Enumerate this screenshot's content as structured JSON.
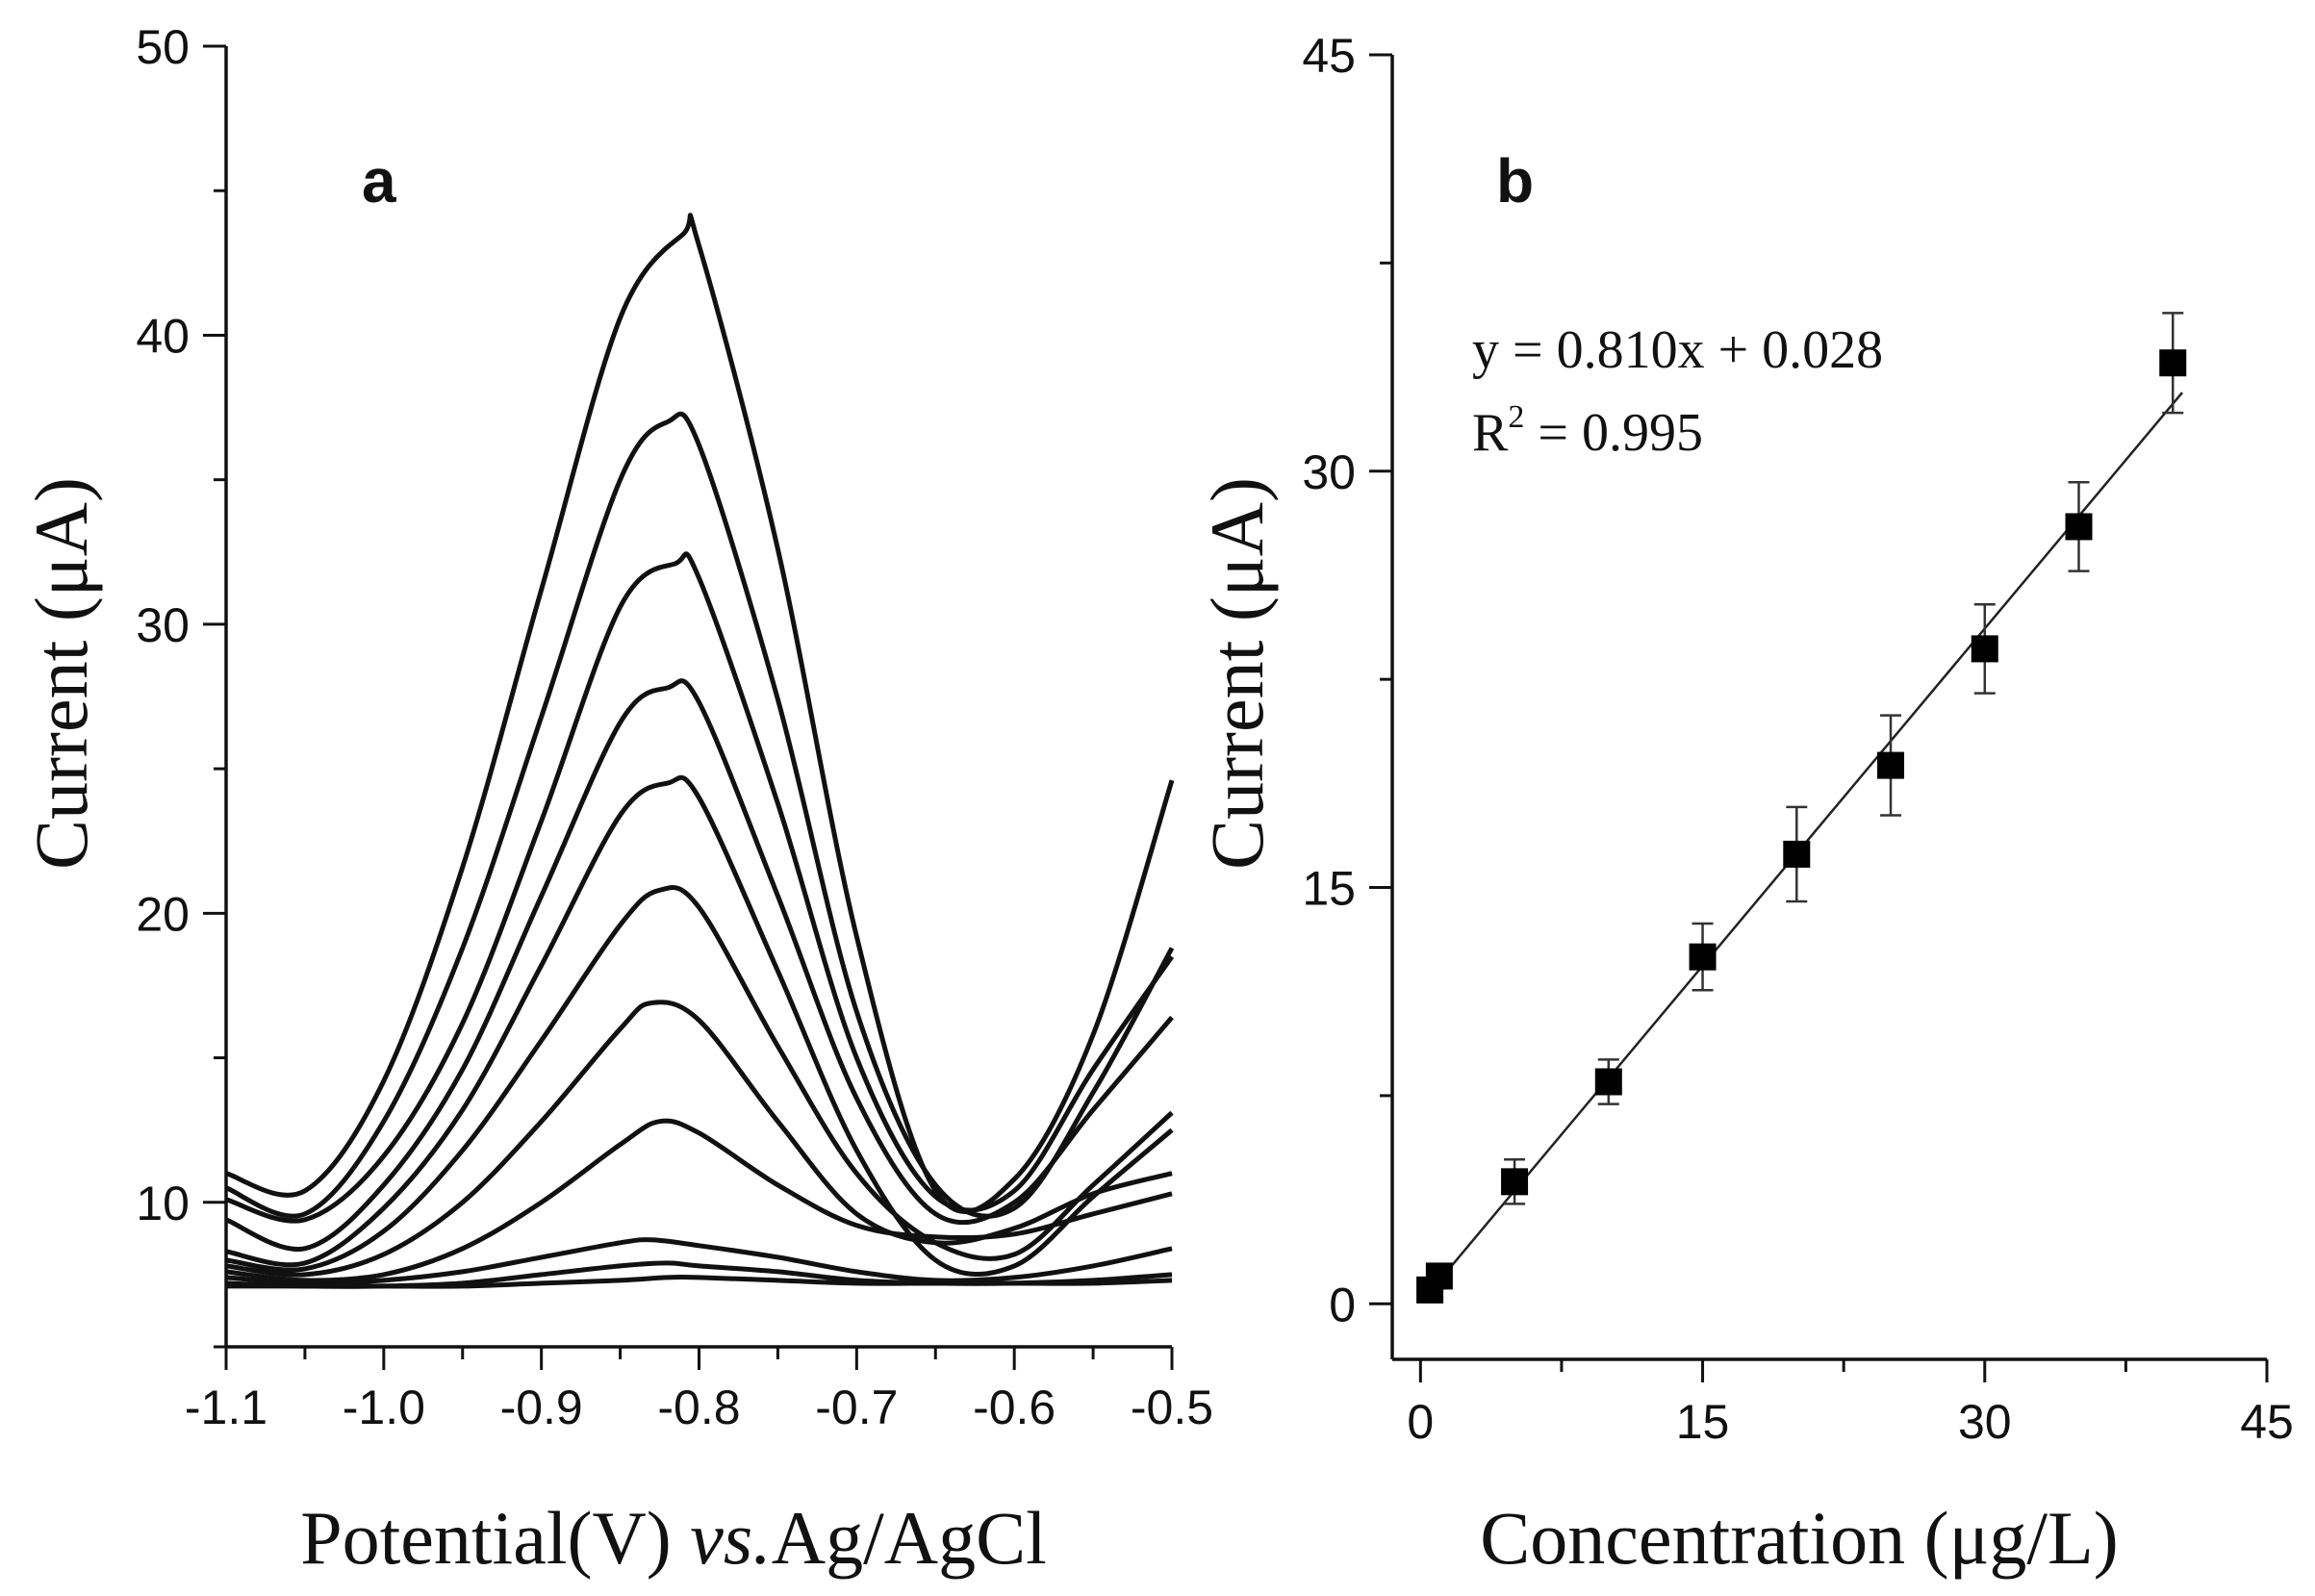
{
  "chart_data": [
    {
      "type": "line",
      "panel_label": "a",
      "xlabel": "Potential(V) vs.Ag/AgCl",
      "xlabel_parts": {
        "pre": "Potential(V) ",
        "italic": "vs.",
        "post": "Ag/AgCl"
      },
      "ylabel": "Current (μA)",
      "xlim": [
        -1.1,
        -0.5
      ],
      "ylim": [
        5,
        50
      ],
      "xticks": [
        -1.1,
        -1.0,
        -0.9,
        -0.8,
        -0.7,
        -0.6,
        -0.5
      ],
      "xtick_labels": [
        "-1.1",
        "-1.0",
        "-0.9",
        "-0.8",
        "-0.7",
        "-0.6",
        "-0.5"
      ],
      "yticks": [
        10,
        20,
        30,
        40,
        50
      ],
      "ytick_labels": [
        "10",
        "20",
        "30",
        "40",
        "50"
      ],
      "series": [
        {
          "x": [
            -1.1,
            -1.05,
            -1.0,
            -0.95,
            -0.9,
            -0.85,
            -0.82,
            -0.8,
            -0.75,
            -0.7,
            -0.65,
            -0.6,
            -0.55,
            -0.5
          ],
          "y": [
            7.1,
            7.1,
            7.1,
            7.1,
            7.2,
            7.3,
            7.4,
            7.4,
            7.3,
            7.2,
            7.2,
            7.2,
            7.2,
            7.3
          ]
        },
        {
          "x": [
            -1.1,
            -1.05,
            -1.0,
            -0.95,
            -0.9,
            -0.85,
            -0.82,
            -0.8,
            -0.75,
            -0.7,
            -0.65,
            -0.6,
            -0.55,
            -0.5
          ],
          "y": [
            7.2,
            7.1,
            7.1,
            7.2,
            7.5,
            7.8,
            7.9,
            7.8,
            7.6,
            7.3,
            7.2,
            7.2,
            7.3,
            7.5
          ]
        },
        {
          "x": [
            -1.1,
            -1.05,
            -1.0,
            -0.95,
            -0.9,
            -0.85,
            -0.83,
            -0.8,
            -0.75,
            -0.7,
            -0.65,
            -0.6,
            -0.55,
            -0.5
          ],
          "y": [
            7.4,
            7.2,
            7.3,
            7.6,
            8.1,
            8.6,
            8.7,
            8.5,
            8.1,
            7.6,
            7.3,
            7.4,
            7.8,
            8.4
          ]
        },
        {
          "x": [
            -1.1,
            -1.05,
            -1.0,
            -0.95,
            -0.9,
            -0.85,
            -0.825,
            -0.8,
            -0.75,
            -0.7,
            -0.65,
            -0.6,
            -0.55,
            -0.5
          ],
          "y": [
            7.6,
            7.3,
            7.5,
            8.4,
            10.0,
            12.0,
            12.8,
            12.4,
            10.6,
            9.2,
            8.8,
            8.9,
            9.6,
            10.3
          ]
        },
        {
          "x": [
            -1.1,
            -1.05,
            -1.0,
            -0.95,
            -0.9,
            -0.85,
            -0.83,
            -0.8,
            -0.75,
            -0.7,
            -0.65,
            -0.6,
            -0.55,
            -0.5
          ],
          "y": [
            7.8,
            7.5,
            8.2,
            10.0,
            12.8,
            16.0,
            16.9,
            16.3,
            12.8,
            9.6,
            8.6,
            9.1,
            10.3,
            11.0
          ]
        },
        {
          "x": [
            -1.1,
            -1.05,
            -1.0,
            -0.95,
            -0.9,
            -0.85,
            -0.825,
            -0.8,
            -0.75,
            -0.7,
            -0.65,
            -0.6,
            -0.55,
            -0.5
          ],
          "y": [
            8.0,
            7.7,
            9.0,
            11.8,
            15.6,
            19.6,
            20.8,
            20.2,
            15.4,
            11.0,
            8.6,
            8.2,
            10.6,
            13.1
          ]
        },
        {
          "x": [
            -1.1,
            -1.05,
            -1.0,
            -0.95,
            -0.9,
            -0.85,
            -0.82,
            -0.8,
            -0.75,
            -0.7,
            -0.65,
            -0.6,
            -0.55,
            -0.5
          ],
          "y": [
            8.3,
            7.9,
            9.8,
            13.2,
            18.2,
            23.4,
            24.5,
            24.0,
            18.0,
            11.8,
            8.0,
            7.8,
            10.2,
            12.5
          ]
        },
        {
          "x": [
            -1.1,
            -1.05,
            -1.0,
            -0.95,
            -0.9,
            -0.85,
            -0.82,
            -0.8,
            -0.75,
            -0.7,
            -0.65,
            -0.6,
            -0.55,
            -0.5
          ],
          "y": [
            9.4,
            8.4,
            10.6,
            14.6,
            20.6,
            26.6,
            27.8,
            27.3,
            20.6,
            13.6,
            9.6,
            10.0,
            13.2,
            16.4
          ]
        },
        {
          "x": [
            -1.1,
            -1.05,
            -1.0,
            -0.95,
            -0.9,
            -0.85,
            -0.815,
            -0.8,
            -0.75,
            -0.7,
            -0.65,
            -0.6,
            -0.55,
            -0.5
          ],
          "y": [
            10.1,
            9.4,
            11.6,
            16.2,
            23.2,
            30.6,
            32.1,
            31.6,
            23.8,
            15.0,
            10.2,
            10.4,
            14.6,
            18.5
          ]
        },
        {
          "x": [
            -1.1,
            -1.05,
            -1.0,
            -0.95,
            -0.9,
            -0.85,
            -0.82,
            -0.8,
            -0.75,
            -0.7,
            -0.65,
            -0.6,
            -0.55,
            -0.5
          ],
          "y": [
            10.5,
            9.6,
            12.8,
            18.8,
            26.8,
            35.0,
            37.0,
            36.2,
            27.4,
            16.6,
            10.6,
            9.8,
            13.8,
            18.8
          ]
        },
        {
          "x": [
            -1.1,
            -1.05,
            -1.0,
            -0.95,
            -0.9,
            -0.85,
            -0.81,
            -0.8,
            -0.75,
            -0.7,
            -0.65,
            -0.6,
            -0.55,
            -0.5
          ],
          "y": [
            11.0,
            10.4,
            14.2,
            21.6,
            31.2,
            40.6,
            43.5,
            43.1,
            32.6,
            19.2,
            10.4,
            10.8,
            15.8,
            24.6
          ]
        }
      ]
    },
    {
      "type": "scatter",
      "panel_label": "b",
      "xlabel": "Concentration (μg/L)",
      "ylabel": "Current (μA)",
      "xlim": [
        -1.5,
        45
      ],
      "ylim": [
        -2,
        45
      ],
      "xticks": [
        0,
        15,
        30,
        45
      ],
      "xtick_labels": [
        "0",
        "15",
        "30",
        "45"
      ],
      "yticks": [
        0,
        15,
        30,
        45
      ],
      "ytick_labels": [
        "0",
        "15",
        "30",
        "45"
      ],
      "equation": "y = 0.810x + 0.028",
      "r_squared": {
        "prefix": "R",
        "sup": "2",
        "suffix": " = 0.995"
      },
      "fit": {
        "slope": 0.81,
        "intercept": 0.028,
        "x_range": [
          0.5,
          40.5
        ]
      },
      "points": [
        {
          "x": 0.5,
          "y": 0.5,
          "err": 0.3
        },
        {
          "x": 1,
          "y": 1.0,
          "err": 0.3
        },
        {
          "x": 5,
          "y": 4.4,
          "err": 0.8
        },
        {
          "x": 10,
          "y": 8.0,
          "err": 0.8
        },
        {
          "x": 15,
          "y": 12.5,
          "err": 1.2
        },
        {
          "x": 20,
          "y": 16.2,
          "err": 1.7
        },
        {
          "x": 25,
          "y": 19.4,
          "err": 1.8
        },
        {
          "x": 30,
          "y": 23.6,
          "err": 1.6
        },
        {
          "x": 35,
          "y": 28.0,
          "err": 1.6
        },
        {
          "x": 40,
          "y": 33.9,
          "err": 1.8
        }
      ]
    }
  ]
}
